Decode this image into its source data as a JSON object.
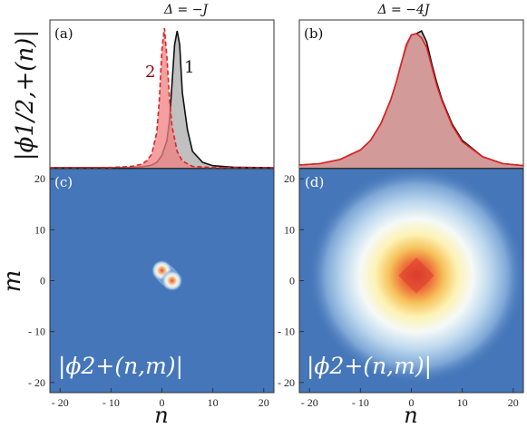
{
  "chart_data": [
    {
      "panel": "(a)",
      "title": "Δ = −J",
      "type": "area",
      "ylabel": "|ϕ1/2,+(n)|",
      "series": [
        {
          "name": "1",
          "label_color": "#111111",
          "line_color": "#111111",
          "fill": "#b5b5b5",
          "x": [
            -22,
            -10,
            -6,
            -4,
            -2,
            -1,
            0,
            1,
            1.5,
            2,
            2.5,
            3,
            3.5,
            4,
            5,
            6,
            8,
            10,
            14,
            22
          ],
          "values": [
            0,
            0,
            0.002,
            0.006,
            0.02,
            0.04,
            0.09,
            0.2,
            0.35,
            0.62,
            0.9,
            1.0,
            0.9,
            0.55,
            0.28,
            0.12,
            0.04,
            0.015,
            0.004,
            0
          ]
        },
        {
          "name": "2",
          "label_color": "#8b0000",
          "line_color": "#e02020",
          "fill": "#f08080",
          "x": [
            -22,
            -10,
            -6,
            -4,
            -3,
            -2,
            -1,
            -0.5,
            0,
            0.5,
            1,
            1.5,
            2,
            3,
            4,
            6,
            10,
            22
          ],
          "values": [
            0,
            0.002,
            0.01,
            0.025,
            0.05,
            0.1,
            0.26,
            0.5,
            0.86,
            1.02,
            0.8,
            0.5,
            0.3,
            0.12,
            0.05,
            0.01,
            0.001,
            0
          ]
        }
      ]
    },
    {
      "panel": "(b)",
      "title": "Δ = −4J",
      "type": "area",
      "series": [
        {
          "name": "",
          "line_color": "#111111",
          "fill": "#b5b5b5",
          "x": [
            -22,
            -18,
            -14,
            -10,
            -8,
            -6,
            -4,
            -3,
            -2,
            -1,
            0,
            1,
            2,
            3,
            4,
            5,
            6,
            8,
            10,
            14,
            18,
            22
          ],
          "values": [
            0.02,
            0.03,
            0.06,
            0.13,
            0.2,
            0.32,
            0.5,
            0.62,
            0.76,
            0.88,
            0.97,
            0.98,
            1.0,
            0.92,
            0.76,
            0.62,
            0.5,
            0.32,
            0.2,
            0.08,
            0.03,
            0.015
          ]
        },
        {
          "name": "",
          "line_color": "#e02020",
          "fill": "#d98e8e",
          "x": [
            -22,
            -18,
            -14,
            -10,
            -8,
            -6,
            -4,
            -3,
            -2,
            -1,
            0,
            1,
            2,
            3,
            4,
            5,
            6,
            8,
            10,
            14,
            18,
            22
          ],
          "values": [
            0.02,
            0.03,
            0.06,
            0.13,
            0.2,
            0.32,
            0.5,
            0.62,
            0.76,
            0.9,
            0.97,
            0.98,
            0.95,
            0.88,
            0.74,
            0.6,
            0.49,
            0.31,
            0.19,
            0.08,
            0.03,
            0.015
          ]
        }
      ]
    },
    {
      "panel": "(c)",
      "type": "heatmap",
      "xlabel": "n",
      "ylabel": "m",
      "annotation": "|ϕ2+(n,m)|",
      "xlim": [
        -22,
        22
      ],
      "ylim": [
        -22,
        22
      ],
      "peaks": [
        {
          "n": 0,
          "m": 2
        },
        {
          "n": 2,
          "m": 0
        }
      ],
      "x_ticks": [
        "- 20",
        "- 10",
        "0",
        "10",
        "20"
      ],
      "y_ticks": [
        "20",
        "10",
        "0",
        "- 10",
        "- 20"
      ]
    },
    {
      "panel": "(d)",
      "type": "heatmap",
      "xlabel": "n",
      "annotation": "|ϕ2+(n,m)|",
      "xlim": [
        -22,
        22
      ],
      "ylim": [
        -22,
        22
      ],
      "center": {
        "n": 1,
        "m": 1
      },
      "x_ticks": [
        "- 20",
        "- 10",
        "0",
        "10",
        "20"
      ],
      "y_ticks": [
        "20",
        "10",
        "0",
        "- 10",
        "- 20"
      ]
    }
  ],
  "colors": {
    "heatmap_background": "#4476b9",
    "heatmap_high": "#e8553a",
    "series1_label": "#111111",
    "series2_label": "#8b0000"
  }
}
